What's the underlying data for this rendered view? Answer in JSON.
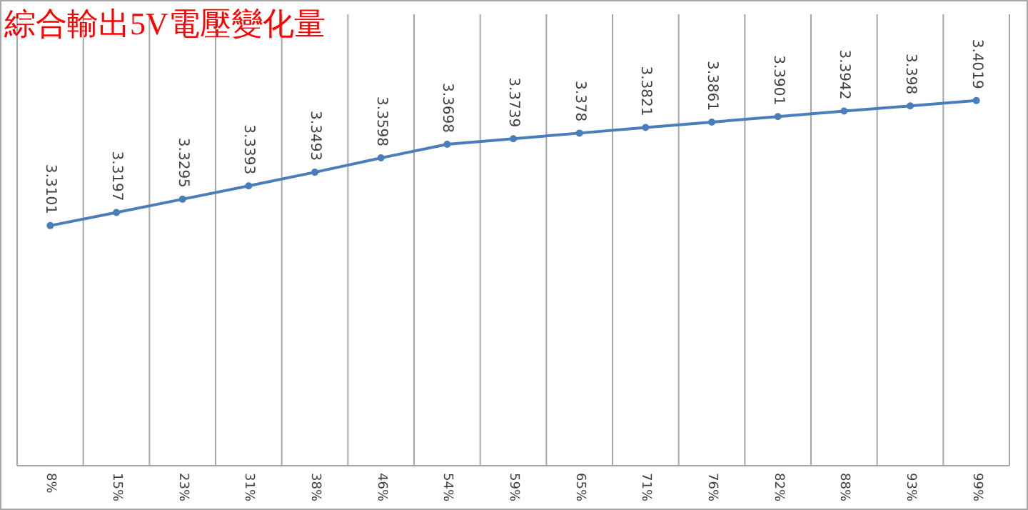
{
  "chart_data": {
    "type": "line",
    "title": "綜合輸出5V電壓變化量",
    "categories": [
      "8%",
      "15%",
      "23%",
      "31%",
      "38%",
      "46%",
      "54%",
      "59%",
      "65%",
      "71%",
      "76%",
      "82%",
      "88%",
      "93%",
      "99%"
    ],
    "series": [
      {
        "color": "#4a7ebb",
        "values": [
          3.3101,
          3.3197,
          3.3295,
          3.3393,
          3.3493,
          3.3598,
          3.3698,
          3.3739,
          3.378,
          3.3821,
          3.3861,
          3.3901,
          3.3942,
          3.398,
          3.4019
        ]
      }
    ],
    "data_labels": true,
    "grid": "x",
    "marker": "circle",
    "line_style": "solid",
    "tick_labels": "x"
  }
}
